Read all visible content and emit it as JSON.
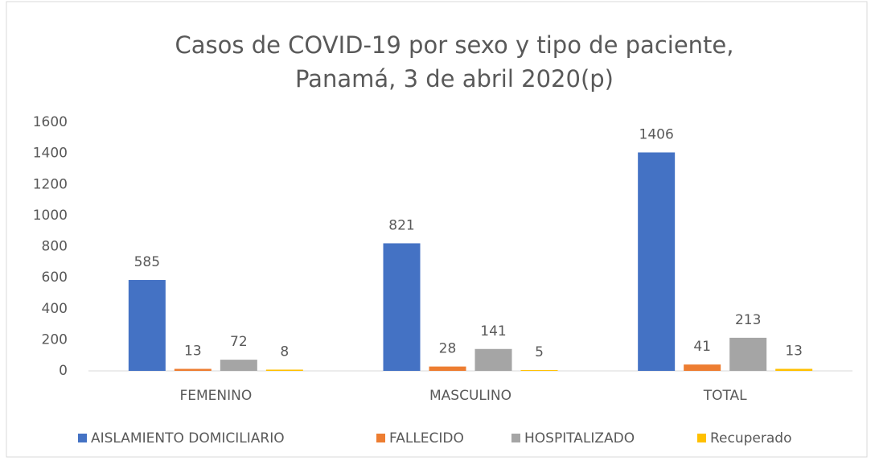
{
  "chart_data": {
    "type": "bar",
    "title": [
      "Casos de COVID-19 por sexo y  tipo de paciente,",
      "Panamá, 3 de abril 2020(p)"
    ],
    "categories": [
      "FEMENINO",
      "MASCULINO",
      "TOTAL"
    ],
    "series": [
      {
        "name": "AISLAMIENTO DOMICILIARIO",
        "color": "#4472c4",
        "values": [
          585,
          821,
          1406
        ]
      },
      {
        "name": "FALLECIDO",
        "color": "#ed7d31",
        "values": [
          13,
          28,
          41
        ]
      },
      {
        "name": "HOSPITALIZADO",
        "color": "#a5a5a5",
        "values": [
          72,
          141,
          213
        ]
      },
      {
        "name": "Recuperado",
        "color": "#ffc000",
        "values": [
          8,
          5,
          13
        ]
      }
    ],
    "ylim": [
      0,
      1600
    ],
    "yticks": [
      0,
      200,
      400,
      600,
      800,
      1000,
      1200,
      1400,
      1600
    ],
    "grid": false,
    "legend": "bottom"
  }
}
